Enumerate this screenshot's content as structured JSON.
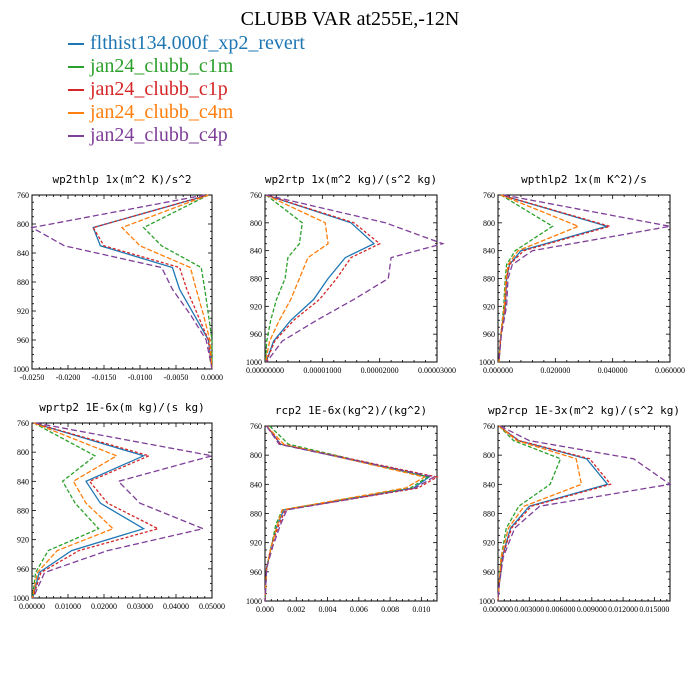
{
  "title": "CLUBB VAR at255E,-12N",
  "legend": [
    {
      "label": "flthist134.000f_xp2_revert",
      "color": "#1f77b4"
    },
    {
      "label": "jan24_clubb_c1m",
      "color": "#2ca02c"
    },
    {
      "label": "jan24_clubb_c1p",
      "color": "#d62728"
    },
    {
      "label": "jan24_clubb_c4m",
      "color": "#ff7f0e"
    },
    {
      "label": "jan24_clubb_c4p",
      "color": "#7f3f98"
    }
  ],
  "chart_data": [
    {
      "type": "line",
      "title": "wp2thlp  1x(m^2 K)/s^2",
      "xlim": [
        -0.025,
        0.0
      ],
      "ylim": [
        760,
        1000
      ],
      "y_inverted": true,
      "xticks": [
        -0.025,
        -0.02,
        -0.015,
        -0.01,
        -0.005,
        0.0
      ],
      "xtick_labels": [
        "-0.0250",
        "-0.0200",
        "-0.0150",
        "-0.0100",
        "-0.0050",
        "0.0000"
      ],
      "yticks": [
        760,
        800,
        840,
        880,
        920,
        960,
        1000
      ],
      "ytick_labels": [
        "760",
        "800",
        "840",
        "880",
        "920",
        "960",
        "1000"
      ],
      "y": [
        760,
        805,
        830,
        860,
        890,
        925,
        960,
        1000
      ],
      "series": [
        {
          "name": "flthist134.000f_xp2_revert",
          "values": [
            -0.0005,
            -0.0165,
            -0.0155,
            -0.0055,
            -0.0045,
            -0.0025,
            -0.0005,
            0.0
          ]
        },
        {
          "name": "jan24_clubb_c1m",
          "values": [
            -0.0005,
            -0.0095,
            -0.007,
            -0.0015,
            -0.001,
            -0.0005,
            0.0,
            0.0
          ]
        },
        {
          "name": "jan24_clubb_c1p",
          "values": [
            -0.0005,
            -0.0165,
            -0.015,
            -0.0045,
            -0.0035,
            -0.002,
            -0.0005,
            0.0
          ]
        },
        {
          "name": "jan24_clubb_c4m",
          "values": [
            -0.0005,
            -0.0125,
            -0.01,
            -0.003,
            -0.0022,
            -0.0012,
            -0.0003,
            0.0
          ]
        },
        {
          "name": "jan24_clubb_c4p",
          "values": [
            -0.001,
            -0.025,
            -0.0205,
            -0.007,
            -0.0055,
            -0.003,
            -0.0008,
            0.0
          ]
        }
      ]
    },
    {
      "type": "line",
      "title": "wp2rtp  1x(m^2 kg)/(s^2 kg)",
      "xlim": [
        0,
        3e-05
      ],
      "ylim": [
        760,
        1000
      ],
      "y_inverted": true,
      "xticks": [
        0,
        1e-05,
        2e-05,
        3e-05
      ],
      "xtick_labels": [
        "0.00000000",
        "0.00001000",
        "0.00002000",
        "0.00003000"
      ],
      "yticks": [
        760,
        800,
        840,
        880,
        920,
        960,
        1000
      ],
      "ytick_labels": [
        "760",
        "800",
        "840",
        "880",
        "920",
        "960",
        "1000"
      ],
      "y": [
        760,
        800,
        830,
        850,
        880,
        910,
        940,
        970,
        1000
      ],
      "series": [
        {
          "name": "flthist134.000f_xp2_revert",
          "values": [
            2e-07,
            1.5e-05,
            1.9e-05,
            1.4e-05,
            1.1e-05,
            8.5e-06,
            4.5e-06,
            1.5e-06,
            2e-07
          ]
        },
        {
          "name": "jan24_clubb_c1m",
          "values": [
            2e-07,
            6.5e-06,
            6e-06,
            4e-06,
            3.5e-06,
            2e-06,
            1e-06,
            3e-07,
            1e-07
          ]
        },
        {
          "name": "jan24_clubb_c1p",
          "values": [
            2e-07,
            1.55e-05,
            2e-05,
            1.5e-05,
            1.25e-05,
            9.5e-06,
            5e-06,
            1.7e-06,
            2e-07
          ]
        },
        {
          "name": "jan24_clubb_c4m",
          "values": [
            2e-07,
            1.05e-05,
            1.1e-05,
            7.5e-06,
            6e-06,
            4.5e-06,
            2.5e-06,
            8e-07,
            1e-07
          ]
        },
        {
          "name": "jan24_clubb_c4p",
          "values": [
            2e-07,
            2.1e-05,
            3.1e-05,
            2.2e-05,
            2.15e-05,
            1.55e-05,
            9e-06,
            3e-06,
            3e-07
          ]
        }
      ]
    },
    {
      "type": "line",
      "title": "wpthlp2  1x(m K^2)/s",
      "xlim": [
        0,
        0.06
      ],
      "ylim": [
        760,
        1000
      ],
      "y_inverted": true,
      "xticks": [
        0,
        0.02,
        0.04,
        0.06
      ],
      "xtick_labels": [
        "0.000000",
        "0.020000",
        "0.040000",
        "0.060000"
      ],
      "yticks": [
        760,
        800,
        840,
        880,
        920,
        960,
        1000
      ],
      "ytick_labels": [
        "760",
        "800",
        "840",
        "880",
        "920",
        "960",
        "1000"
      ],
      "y": [
        760,
        805,
        840,
        860,
        880,
        920,
        960,
        1000
      ],
      "series": [
        {
          "name": "flthist134.000f_xp2_revert",
          "values": [
            0.001,
            0.038,
            0.008,
            0.004,
            0.003,
            0.0025,
            0.001,
            0.0003
          ]
        },
        {
          "name": "jan24_clubb_c1m",
          "values": [
            0.001,
            0.019,
            0.006,
            0.003,
            0.0025,
            0.002,
            0.001,
            0.0003
          ]
        },
        {
          "name": "jan24_clubb_c1p",
          "values": [
            0.001,
            0.039,
            0.009,
            0.004,
            0.003,
            0.0025,
            0.001,
            0.0003
          ]
        },
        {
          "name": "jan24_clubb_c4m",
          "values": [
            0.001,
            0.028,
            0.007,
            0.0035,
            0.0028,
            0.0022,
            0.001,
            0.0003
          ]
        },
        {
          "name": "jan24_clubb_c4p",
          "values": [
            0.002,
            0.06,
            0.012,
            0.005,
            0.0035,
            0.003,
            0.0012,
            0.0003
          ]
        }
      ]
    },
    {
      "type": "line",
      "title": "wprtp2  1E-6x(m kg)/(s kg)",
      "xlim": [
        0,
        0.05
      ],
      "ylim": [
        760,
        1000
      ],
      "y_inverted": true,
      "xticks": [
        0,
        0.01,
        0.02,
        0.03,
        0.04,
        0.05
      ],
      "xtick_labels": [
        "0.00000",
        "0.01000",
        "0.02000",
        "0.03000",
        "0.04000",
        "0.05000"
      ],
      "yticks": [
        760,
        800,
        840,
        880,
        920,
        960,
        1000
      ],
      "ytick_labels": [
        "760",
        "800",
        "840",
        "880",
        "920",
        "960",
        "1000"
      ],
      "y": [
        760,
        805,
        840,
        870,
        905,
        935,
        965,
        1000
      ],
      "series": [
        {
          "name": "flthist134.000f_xp2_revert",
          "values": [
            0.0005,
            0.031,
            0.015,
            0.019,
            0.031,
            0.011,
            0.002,
            0.0002
          ]
        },
        {
          "name": "jan24_clubb_c1m",
          "values": [
            0.0005,
            0.0175,
            0.0085,
            0.012,
            0.0185,
            0.0045,
            0.001,
            0.0001
          ]
        },
        {
          "name": "jan24_clubb_c1p",
          "values": [
            0.0005,
            0.0325,
            0.016,
            0.021,
            0.035,
            0.013,
            0.0025,
            0.0002
          ]
        },
        {
          "name": "jan24_clubb_c4m",
          "values": [
            0.0005,
            0.0235,
            0.0115,
            0.015,
            0.0225,
            0.007,
            0.0015,
            0.0001
          ]
        },
        {
          "name": "jan24_clubb_c4p",
          "values": [
            0.001,
            0.05,
            0.024,
            0.03,
            0.0475,
            0.021,
            0.0035,
            0.0003
          ]
        }
      ]
    },
    {
      "type": "line",
      "title": "rcp2  1E-6x(kg^2)/(kg^2)",
      "xlim": [
        0,
        0.011
      ],
      "ylim": [
        760,
        1000
      ],
      "y_inverted": true,
      "xticks": [
        0,
        0.002,
        0.004,
        0.006,
        0.008,
        0.01
      ],
      "xtick_labels": [
        "0.000",
        "0.002",
        "0.004",
        "0.006",
        "0.008",
        "0.010"
      ],
      "yticks": [
        760,
        800,
        840,
        880,
        920,
        960,
        1000
      ],
      "ytick_labels": [
        "760",
        "800",
        "840",
        "880",
        "920",
        "960",
        "1000"
      ],
      "y": [
        760,
        785,
        830,
        845,
        875,
        895,
        925,
        955,
        1000
      ],
      "series": [
        {
          "name": "flthist134.000f_xp2_revert",
          "values": [
            0.0001,
            0.001,
            0.0105,
            0.0095,
            0.0012,
            0.0008,
            0.0004,
            0.0001,
            0.0
          ]
        },
        {
          "name": "jan24_clubb_c1m",
          "values": [
            0.0003,
            0.0015,
            0.0104,
            0.0093,
            0.0011,
            0.0007,
            0.0004,
            0.0001,
            0.0
          ]
        },
        {
          "name": "jan24_clubb_c1p",
          "values": [
            0.0001,
            0.001,
            0.011,
            0.0098,
            0.0013,
            0.0009,
            0.0004,
            0.0001,
            0.0
          ]
        },
        {
          "name": "jan24_clubb_c4m",
          "values": [
            0.0001,
            0.0012,
            0.0102,
            0.009,
            0.0011,
            0.0008,
            0.0004,
            0.0001,
            0.0
          ]
        },
        {
          "name": "jan24_clubb_c4p",
          "values": [
            0.0001,
            0.0009,
            0.0108,
            0.0096,
            0.0014,
            0.001,
            0.0005,
            0.0001,
            0.0
          ]
        }
      ]
    },
    {
      "type": "line",
      "title": "wp2rcp  1E-3x(m^2 kg)/(s^2 kg)",
      "xlim": [
        0,
        0.0165
      ],
      "ylim": [
        760,
        1000
      ],
      "y_inverted": true,
      "xticks": [
        0,
        0.003,
        0.006,
        0.009,
        0.012,
        0.015
      ],
      "xtick_labels": [
        "0.000000",
        "0.003000",
        "0.006000",
        "0.009000",
        "0.012000",
        "0.015000"
      ],
      "yticks": [
        760,
        800,
        840,
        880,
        920,
        960,
        1000
      ],
      "ytick_labels": [
        "760",
        "800",
        "840",
        "880",
        "920",
        "960",
        "1000"
      ],
      "y": [
        760,
        780,
        805,
        840,
        870,
        900,
        940,
        980,
        1000
      ],
      "series": [
        {
          "name": "flthist134.000f_xp2_revert",
          "values": [
            0.0001,
            0.002,
            0.0085,
            0.0105,
            0.003,
            0.0012,
            0.0004,
            0.0001,
            0.0
          ]
        },
        {
          "name": "jan24_clubb_c1m",
          "values": [
            0.0001,
            0.0015,
            0.006,
            0.005,
            0.002,
            0.0008,
            0.0003,
            0.0001,
            0.0
          ]
        },
        {
          "name": "jan24_clubb_c1p",
          "values": [
            0.0001,
            0.002,
            0.0088,
            0.0108,
            0.0032,
            0.0013,
            0.0004,
            0.0001,
            0.0
          ]
        },
        {
          "name": "jan24_clubb_c4m",
          "values": [
            0.0001,
            0.0018,
            0.0075,
            0.008,
            0.0025,
            0.001,
            0.0003,
            0.0001,
            0.0
          ]
        },
        {
          "name": "jan24_clubb_c4p",
          "values": [
            0.0002,
            0.003,
            0.013,
            0.0165,
            0.004,
            0.0016,
            0.0005,
            0.0001,
            0.0
          ]
        }
      ]
    }
  ]
}
